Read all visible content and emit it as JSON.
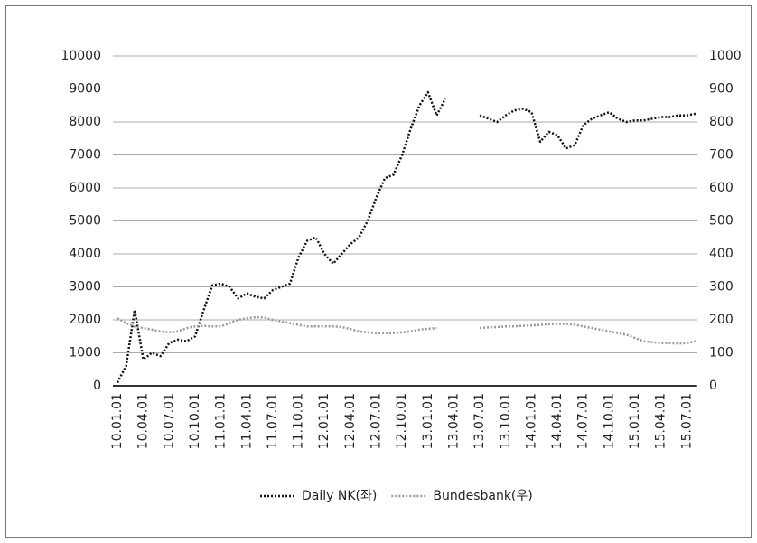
{
  "chart_data": {
    "type": "line",
    "categories": [
      "10.01.01",
      null,
      null,
      "10.04.01",
      null,
      null,
      "10.07.01",
      null,
      null,
      "10.10.01",
      null,
      null,
      "11.01.01",
      null,
      null,
      "11.04.01",
      null,
      null,
      "11.07.01",
      null,
      null,
      "11.10.01",
      null,
      null,
      "12.01.01",
      null,
      null,
      "12.04.01",
      null,
      null,
      "12.07.01",
      null,
      null,
      "12.10.01",
      null,
      null,
      "13.01.01",
      null,
      null,
      "13.04.01",
      null,
      null,
      "13.07.01",
      null,
      null,
      "13.10.01",
      null,
      null,
      "14.01.01",
      null,
      null,
      "14.04.01",
      null,
      null,
      "14.07.01",
      null,
      null,
      "14.10.01",
      null,
      null,
      "15.01.01",
      null,
      null,
      "15.04.01",
      null,
      null,
      "15.07.01",
      null
    ],
    "series": [
      {
        "name": "Daily NK(좌)",
        "color": "#111111",
        "axis": "y",
        "values": [
          100,
          600,
          2300,
          800,
          1000,
          900,
          1300,
          1400,
          1350,
          1500,
          2300,
          3050,
          3100,
          3000,
          2650,
          2800,
          2700,
          2650,
          2900,
          3000,
          3100,
          3900,
          4400,
          4500,
          4000,
          3700,
          4000,
          4300,
          4500,
          5000,
          5700,
          6300,
          6400,
          7000,
          7800,
          8500,
          8900,
          8200,
          8700,
          null,
          null,
          null,
          8200,
          8100,
          8000,
          8200,
          8350,
          8400,
          8300,
          7400,
          7700,
          7600,
          7200,
          7300,
          7900,
          8100,
          8200,
          8300,
          8100,
          8000,
          8050,
          8050,
          8100,
          8150,
          8150,
          8200,
          8200,
          8250
        ]
      },
      {
        "name": "Bundesbank(우)",
        "color": "#999999",
        "axis": "y2",
        "values": [
          205,
          190,
          180,
          175,
          170,
          165,
          162,
          165,
          175,
          180,
          182,
          180,
          180,
          190,
          200,
          205,
          208,
          207,
          200,
          195,
          190,
          185,
          180,
          180,
          180,
          180,
          178,
          172,
          165,
          162,
          160,
          160,
          160,
          162,
          165,
          170,
          173,
          175,
          null,
          null,
          null,
          null,
          175,
          177,
          178,
          180,
          180,
          182,
          183,
          185,
          187,
          188,
          188,
          185,
          180,
          175,
          170,
          165,
          160,
          155,
          145,
          135,
          132,
          130,
          130,
          128,
          130,
          135
        ]
      }
    ],
    "ylim": [
      0,
      10000
    ],
    "yticks": [
      0,
      1000,
      2000,
      3000,
      4000,
      5000,
      6000,
      7000,
      8000,
      9000,
      10000
    ],
    "y2lim": [
      0,
      1000
    ],
    "y2ticks": [
      0,
      100,
      200,
      300,
      400,
      500,
      600,
      700,
      800,
      900,
      1000
    ],
    "grid": true,
    "legend": "bottom"
  }
}
